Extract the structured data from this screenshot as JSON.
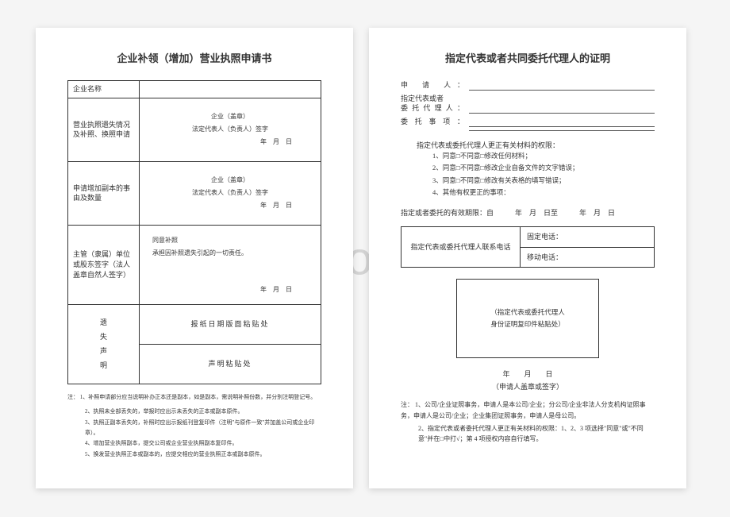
{
  "watermark": "bingdoc.com",
  "left": {
    "title": "企业补领（增加）营业执照申请书",
    "rows": {
      "r1_label": "企业名称",
      "r2_label": "营业执照遗失情况及补照、换照申请",
      "r2_seal": "企业（盖章）",
      "r2_sign": "法定代表人（负责人）签字",
      "r2_date": "年　月　日",
      "r3_label": "申请增加副本的事由及数量",
      "r3_seal": "企业（盖章）",
      "r3_sign": "法定代表人（负责人）签字",
      "r3_date": "年　月　日",
      "r4_label": "主管（隶属）单位或股东签字（法人盖章自然人签字）",
      "r4_line1": "同意补照",
      "r4_line2": "承担因补照遗失引起的一切责任。",
      "r4_date": "年　月　日",
      "r5_span": "遗失声明",
      "r5_top": "报纸日期版面粘贴处",
      "r5_bot": "声明粘贴处"
    },
    "notes_label": "注：",
    "notes": [
      "1、补照申请部分应当说明补办正本还是副本，如是副本，需说明补照份数，并分别注明登记号。",
      "2、执照未全部丢失的，举报时应出示未丢失的正本或副本原件。",
      "3、执照正副本丢失的，补照时应出示报纸刊登复印件（注明\"与原件一致\"并加盖公司或企业印章）。",
      "4、增加营业执照副本，提交公司或企业营业执照副本复印件。",
      "5、换发营业执照正本或副本的，应提交相应的营业执照正本或副本原件。"
    ]
  },
  "right": {
    "title": "指定代表或者共同委托代理人的证明",
    "fields": {
      "applicant": "申 请 人：",
      "rep": "指定代表或者",
      "agent": "委托代理人：",
      "matter": "委托事项："
    },
    "auth_title": "指定代表或委托代理人更正有关材料的权限：",
    "auth_items": [
      "1、同意□不同意□修改任何材料；",
      "2、同意□不同意□修改企业自备文件的文字错误；",
      "3、同意□不同意□修改有关表格的填写错误；",
      "4、其他有权更正的事项："
    ],
    "period": "指定或者委托的有效期限：自　　　年　月　日至　　　年　月　日",
    "contact_label": "指定代表或委托代理人联系电话",
    "fixed_phone": "固定电话：",
    "mobile_phone": "移动电话：",
    "paste_box": "（指定代表或委托代理人\n身份证明复印件粘贴处）",
    "date": "年　　月　　日",
    "sign": "（申请人盖章或签字）",
    "notes_label": "注：",
    "notes": [
      "1、公司/企业证照事务，申请人是本公司/企业；分公司/企业非法人分支机构证照事务，申请人是公司/企业；企业集团证照事务，申请人是母公司。",
      "2、指定代表或者委托代理人更正有关材料的权限：1、2、3 项选择\"同意\"或\"不同意\"并在□中打√；第 4 项授权内容自行填写。"
    ]
  }
}
